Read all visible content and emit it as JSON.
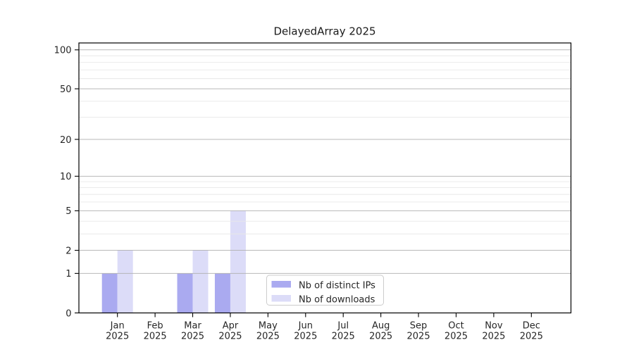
{
  "chart_data": {
    "type": "bar",
    "title": "DelayedArray 2025",
    "x_categories": [
      {
        "month": "Jan",
        "year": "2025"
      },
      {
        "month": "Feb",
        "year": "2025"
      },
      {
        "month": "Mar",
        "year": "2025"
      },
      {
        "month": "Apr",
        "year": "2025"
      },
      {
        "month": "May",
        "year": "2025"
      },
      {
        "month": "Jun",
        "year": "2025"
      },
      {
        "month": "Jul",
        "year": "2025"
      },
      {
        "month": "Aug",
        "year": "2025"
      },
      {
        "month": "Sep",
        "year": "2025"
      },
      {
        "month": "Oct",
        "year": "2025"
      },
      {
        "month": "Nov",
        "year": "2025"
      },
      {
        "month": "Dec",
        "year": "2025"
      }
    ],
    "series": [
      {
        "name": "Nb of distinct IPs",
        "color": "#aaaaf0",
        "values": [
          1,
          0,
          1,
          1,
          0,
          0,
          0,
          0,
          0,
          0,
          0,
          0
        ]
      },
      {
        "name": "Nb of downloads",
        "color": "#dcdcf8",
        "values": [
          2,
          0,
          2,
          5,
          0,
          0,
          0,
          0,
          0,
          0,
          0,
          0
        ]
      }
    ],
    "y_axis": {
      "scale": "log10(value+1)",
      "major_ticks": [
        0,
        1,
        2,
        5,
        10,
        20,
        50,
        100
      ],
      "minor_gridlines": [
        3,
        4,
        6,
        7,
        8,
        9,
        30,
        40,
        60,
        70,
        80,
        90
      ],
      "ylim": [
        0,
        113
      ]
    },
    "xlabel": "",
    "ylabel": "",
    "grid": "horizontal",
    "legend_position": "bottom-center-inside",
    "colors": {
      "major_grid": "#b0b0b0",
      "minor_grid": "#e8e8e8",
      "axis": "#000000",
      "text": "#262626",
      "background": "#ffffff"
    }
  }
}
